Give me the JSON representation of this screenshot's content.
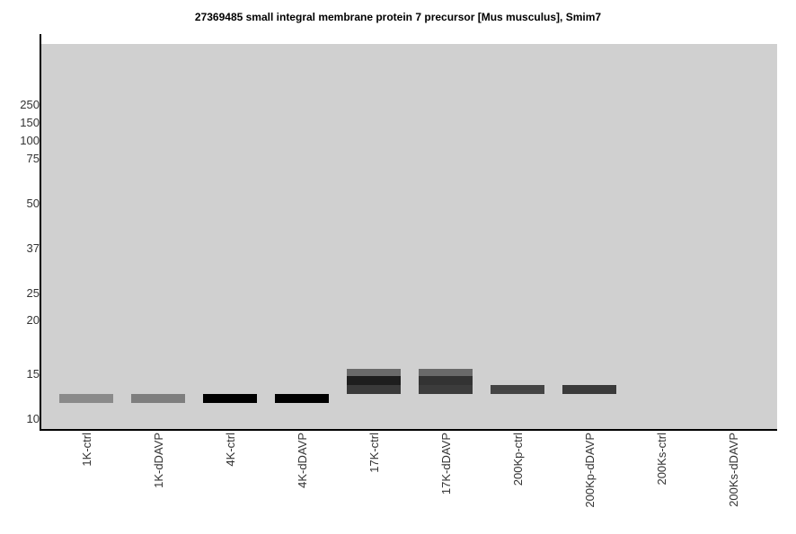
{
  "chart_data": {
    "type": "western-blot",
    "title": "27369485 small integral membrane protein 7 precursor [Mus musculus], Smim7",
    "lanes": [
      "1K-ctrl",
      "1K-dDAVP",
      "4K-ctrl",
      "4K-dDAVP",
      "17K-ctrl",
      "17K-dDAVP",
      "200Kp-ctrl",
      "200Kp-dDAVP",
      "200Ks-ctrl",
      "200Ks-dDAVP"
    ],
    "mw_markers": [
      "250",
      "150",
      "100",
      "75",
      "50",
      "37",
      "25",
      "20",
      "15",
      "10"
    ],
    "mw_ticks": [
      {
        "label": "250",
        "mw": 250
      },
      {
        "label": "150",
        "mw": 150
      },
      {
        "label": "100",
        "mw": 100
      },
      {
        "label": "75",
        "mw": 75
      },
      {
        "label": "50",
        "mw": 50
      },
      {
        "label": "37",
        "mw": 37
      },
      {
        "label": "25",
        "mw": 25
      },
      {
        "label": "20",
        "mw": 20
      },
      {
        "label": "15",
        "mw": 15
      },
      {
        "label": "10",
        "mw": 10
      }
    ],
    "bands": [
      {
        "lane": "1K-ctrl",
        "mw": 12,
        "shade": "#8a8a8a"
      },
      {
        "lane": "1K-dDAVP",
        "mw": 12,
        "shade": "#7e7e7e"
      },
      {
        "lane": "4K-ctrl",
        "mw": 12,
        "shade": "#000000"
      },
      {
        "lane": "4K-dDAVP",
        "mw": 12,
        "shade": "#000000"
      },
      {
        "lane": "17K-ctrl",
        "mw": 15,
        "shade": "#6a6a6a"
      },
      {
        "lane": "17K-ctrl",
        "mw": 14,
        "shade": "#1e1e1e"
      },
      {
        "lane": "17K-ctrl",
        "mw": 13,
        "shade": "#3a3a3a"
      },
      {
        "lane": "17K-dDAVP",
        "mw": 15,
        "shade": "#6a6a6a"
      },
      {
        "lane": "17K-dDAVP",
        "mw": 14,
        "shade": "#333333"
      },
      {
        "lane": "17K-dDAVP",
        "mw": 13,
        "shade": "#3c3c3c"
      },
      {
        "lane": "200Kp-ctrl",
        "mw": 13,
        "shade": "#444444"
      },
      {
        "lane": "200Kp-dDAVP",
        "mw": 13,
        "shade": "#3a3a3a"
      }
    ],
    "background": "#d0d0d0"
  }
}
